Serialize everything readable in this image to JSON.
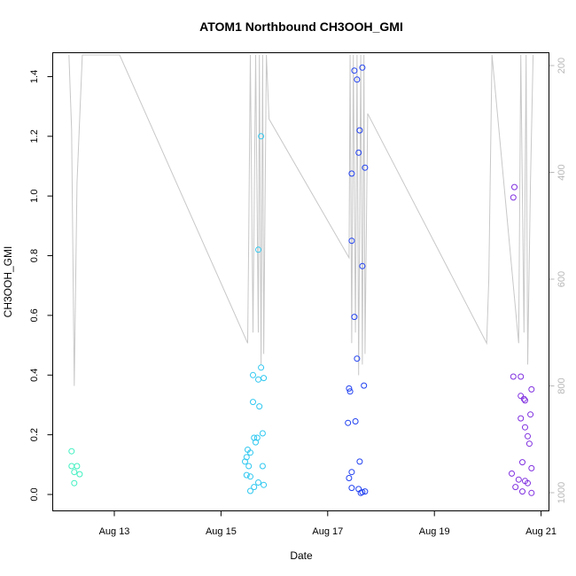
{
  "chart_data": {
    "type": "scatter",
    "title": "ATOM1 Northbound CH3OOH_GMI",
    "xlabel": "Date",
    "ylabel": "CH3OOH_GMI",
    "x_ticks": [
      {
        "label": "Aug 13",
        "day": 13
      },
      {
        "label": "Aug 15",
        "day": 15
      },
      {
        "label": "Aug 17",
        "day": 17
      },
      {
        "label": "Aug 19",
        "day": 19
      },
      {
        "label": "Aug 21",
        "day": 21
      }
    ],
    "y_ticks": [
      "0.0",
      "0.2",
      "0.4",
      "0.6",
      "0.8",
      "1.0",
      "1.2",
      "1.4"
    ],
    "ylim": [
      0,
      1.48
    ],
    "right_axis": {
      "ticks": [
        "200",
        "400",
        "600",
        "800",
        "1000"
      ],
      "range_top_to_bottom": [
        180,
        1020
      ],
      "color": "#b8b8b8"
    },
    "point_colors": [
      "#40f0c0",
      "#30c8f0",
      "#2040f0",
      "#8030e0"
    ],
    "series": [
      {
        "color_index": 0,
        "points": [
          [
            12.2,
            0.145
          ],
          [
            12.2,
            0.095
          ],
          [
            12.3,
            0.095
          ],
          [
            12.25,
            0.075
          ],
          [
            12.35,
            0.068
          ],
          [
            12.25,
            0.038
          ]
        ]
      },
      {
        "color_index": 1,
        "points": [
          [
            15.75,
            1.2
          ],
          [
            15.7,
            0.82
          ],
          [
            15.75,
            0.425
          ],
          [
            15.6,
            0.4
          ],
          [
            15.8,
            0.39
          ],
          [
            15.7,
            0.385
          ],
          [
            15.6,
            0.31
          ],
          [
            15.72,
            0.295
          ],
          [
            15.78,
            0.205
          ],
          [
            15.62,
            0.19
          ],
          [
            15.68,
            0.19
          ],
          [
            15.65,
            0.175
          ],
          [
            15.5,
            0.15
          ],
          [
            15.55,
            0.14
          ],
          [
            15.48,
            0.125
          ],
          [
            15.45,
            0.11
          ],
          [
            15.52,
            0.095
          ],
          [
            15.78,
            0.095
          ],
          [
            15.48,
            0.065
          ],
          [
            15.55,
            0.06
          ],
          [
            15.7,
            0.04
          ],
          [
            15.8,
            0.032
          ],
          [
            15.62,
            0.025
          ],
          [
            15.55,
            0.012
          ]
        ]
      },
      {
        "color_index": 2,
        "points": [
          [
            17.65,
            1.43
          ],
          [
            17.5,
            1.42
          ],
          [
            17.55,
            1.39
          ],
          [
            17.6,
            1.22
          ],
          [
            17.58,
            1.145
          ],
          [
            17.7,
            1.095
          ],
          [
            17.45,
            1.075
          ],
          [
            17.45,
            0.85
          ],
          [
            17.65,
            0.765
          ],
          [
            17.5,
            0.595
          ],
          [
            17.55,
            0.455
          ],
          [
            17.68,
            0.365
          ],
          [
            17.4,
            0.355
          ],
          [
            17.42,
            0.345
          ],
          [
            17.52,
            0.245
          ],
          [
            17.38,
            0.24
          ],
          [
            17.6,
            0.11
          ],
          [
            17.45,
            0.075
          ],
          [
            17.4,
            0.055
          ],
          [
            17.45,
            0.022
          ],
          [
            17.58,
            0.018
          ],
          [
            17.7,
            0.01
          ],
          [
            17.65,
            0.008
          ],
          [
            17.62,
            0.005
          ]
        ]
      },
      {
        "color_index": 3,
        "points": [
          [
            20.5,
            1.03
          ],
          [
            20.48,
            0.995
          ],
          [
            20.48,
            0.395
          ],
          [
            20.62,
            0.395
          ],
          [
            20.82,
            0.352
          ],
          [
            20.62,
            0.33
          ],
          [
            20.68,
            0.32
          ],
          [
            20.7,
            0.315
          ],
          [
            20.8,
            0.268
          ],
          [
            20.62,
            0.255
          ],
          [
            20.7,
            0.225
          ],
          [
            20.75,
            0.195
          ],
          [
            20.78,
            0.17
          ],
          [
            20.65,
            0.108
          ],
          [
            20.82,
            0.088
          ],
          [
            20.45,
            0.07
          ],
          [
            20.58,
            0.05
          ],
          [
            20.7,
            0.045
          ],
          [
            20.75,
            0.038
          ],
          [
            20.52,
            0.025
          ],
          [
            20.65,
            0.01
          ],
          [
            20.82,
            0.005
          ]
        ]
      }
    ],
    "pressure_line": {
      "color": "#c8c8c8",
      "points": [
        [
          12.15,
          180
        ],
        [
          12.2,
          320
        ],
        [
          12.25,
          800
        ],
        [
          12.3,
          420
        ],
        [
          12.4,
          180
        ],
        [
          13.1,
          180
        ],
        [
          15.5,
          720
        ],
        [
          15.52,
          520
        ],
        [
          15.55,
          180
        ],
        [
          15.6,
          700
        ],
        [
          15.65,
          180
        ],
        [
          15.7,
          700
        ],
        [
          15.72,
          180
        ],
        [
          15.75,
          760
        ],
        [
          15.78,
          180
        ],
        [
          15.8,
          740
        ],
        [
          15.85,
          180
        ],
        [
          15.9,
          300
        ],
        [
          17.4,
          560
        ],
        [
          17.42,
          180
        ],
        [
          17.45,
          720
        ],
        [
          17.48,
          180
        ],
        [
          17.52,
          700
        ],
        [
          17.55,
          180
        ],
        [
          17.58,
          780
        ],
        [
          17.62,
          180
        ],
        [
          17.65,
          760
        ],
        [
          17.68,
          180
        ],
        [
          17.7,
          740
        ],
        [
          17.75,
          290
        ],
        [
          19.98,
          720
        ],
        [
          20.02,
          600
        ],
        [
          20.08,
          180
        ],
        [
          20.58,
          720
        ],
        [
          20.62,
          180
        ],
        [
          20.68,
          700
        ],
        [
          20.72,
          180
        ],
        [
          20.75,
          760
        ],
        [
          20.8,
          420
        ],
        [
          20.85,
          180
        ]
      ]
    }
  }
}
